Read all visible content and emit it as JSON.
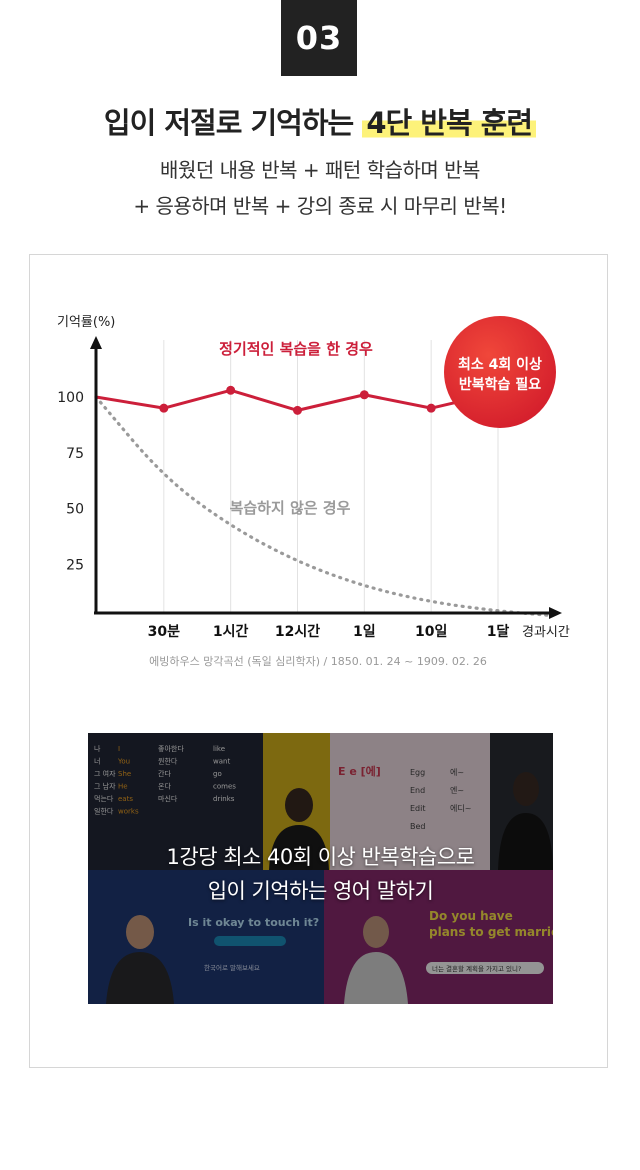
{
  "step_badge": "03",
  "headline": {
    "prefix": "입이 저절로 기억하는 ",
    "highlight": "4단 반복 훈련"
  },
  "subtitle": [
    "배웠던 내용 반복 + 패턴 학습하며 반복",
    "+ 응용하며 반복 + 강의 종료 시 마무리 반복!"
  ],
  "chart_data": {
    "type": "line",
    "ylabel": "기억률(%)",
    "xlabel": "경과시간",
    "y_ticks": [
      100,
      75,
      50,
      25
    ],
    "ylim": [
      0,
      120
    ],
    "categories": [
      "0",
      "30분",
      "1시간",
      "12시간",
      "1일",
      "10일",
      "1달"
    ],
    "x_tick_labels": [
      "30분",
      "1시간",
      "12시간",
      "1일",
      "10일",
      "1달"
    ],
    "series": [
      {
        "name": "정기적인 복습을 한 경우",
        "style": "solid",
        "color": "#cc1f3a",
        "values": [
          100,
          95,
          103,
          94,
          101,
          95,
          102
        ]
      },
      {
        "name": "복습하지 않은 경우",
        "style": "dotted",
        "color": "#9a9a9a",
        "values": [
          100,
          64,
          42,
          26,
          15,
          8,
          4
        ]
      }
    ],
    "grid": "vertical",
    "callout": {
      "lines": [
        "최소 4회 이상",
        "반복학습 필요"
      ],
      "color": "#dd2a30"
    },
    "source": "에빙하우스 망각곡선 (독일 심리학자) / 1850. 01. 24 ~ 1909. 02. 26"
  },
  "video": {
    "caption": [
      "1강당 최소 40회 이상 반복학습으로",
      "입이 기억하는 영어 말하기"
    ],
    "thumb_text": {
      "q1_words": [
        "나",
        "I",
        "좋아한다",
        "like",
        "너",
        "You",
        "원한다",
        "want",
        "그 여자",
        "She",
        "간다",
        "go",
        "그 남자",
        "He",
        "온다",
        "comes",
        "먹는다",
        "eats",
        "마신다",
        "drinks",
        "일한다",
        "works"
      ],
      "q2_words": [
        "E e [에]",
        "Egg",
        "에~",
        "End",
        "엔~",
        "Edit",
        "에디~",
        "Bed"
      ],
      "q3_question": "Is it okay to touch it?",
      "q3_hint": "한국어로 말해보세요",
      "q4_question": [
        "Do you have",
        "plans to get married?"
      ],
      "q4_hint": "너는 결혼할 계획을 가지고 있니?"
    }
  }
}
